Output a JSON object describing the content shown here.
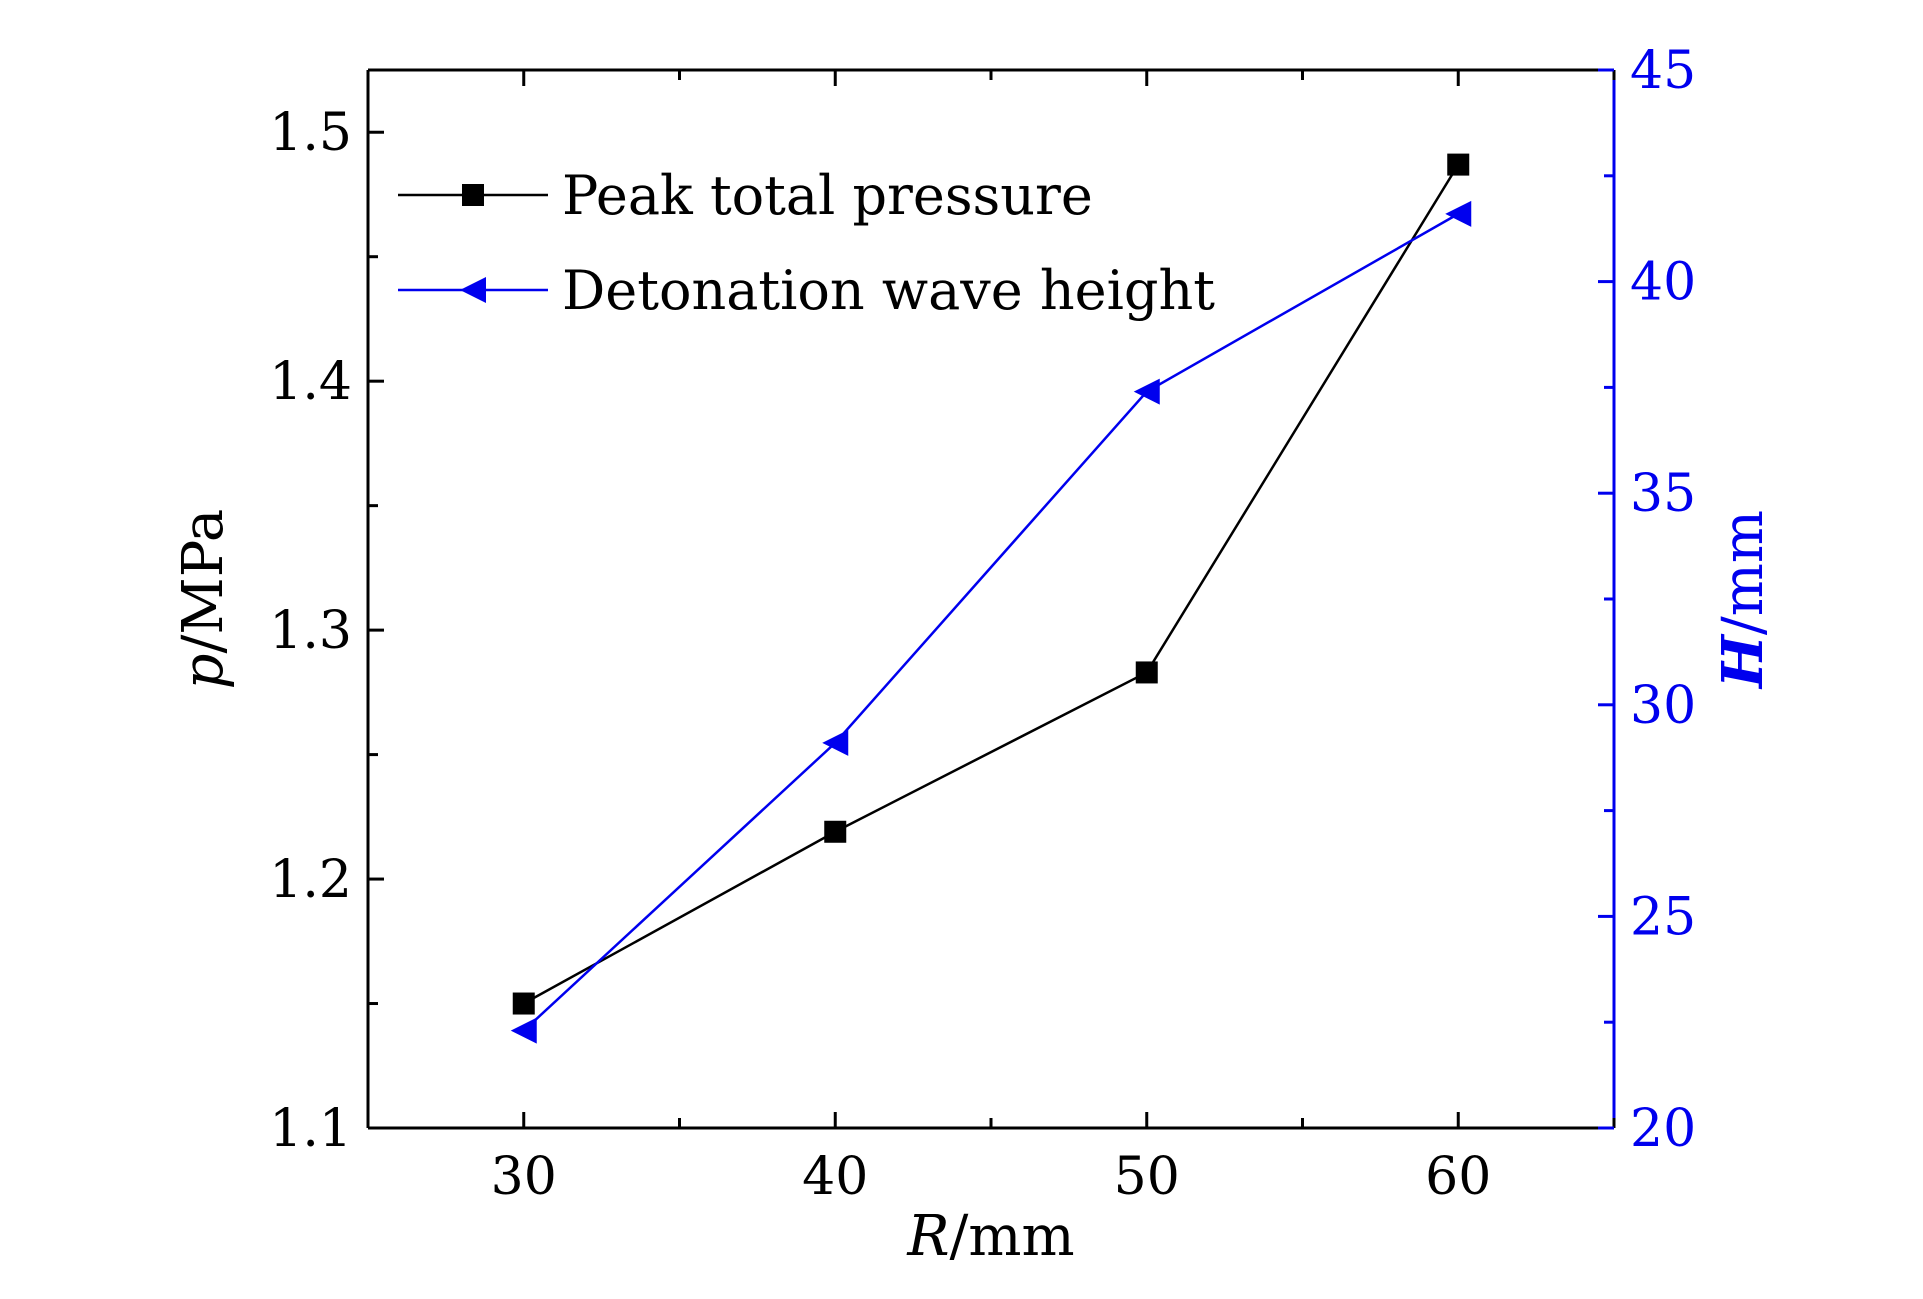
{
  "chart_data": {
    "type": "line",
    "x": [
      30,
      40,
      50,
      60
    ],
    "x_ticks": [
      "30",
      "40",
      "50",
      "60"
    ],
    "xlim": [
      25,
      65
    ],
    "xlabel": {
      "symbol": "R",
      "unit": "/mm"
    },
    "left_axis": {
      "ylabel": {
        "symbol": "p",
        "unit": "/MPa"
      },
      "ylim": [
        1.1,
        1.525
      ],
      "ticks": [
        "1.1",
        "1.2",
        "1.3",
        "1.4",
        "1.5"
      ],
      "tick_values": [
        1.1,
        1.2,
        1.3,
        1.4,
        1.5
      ]
    },
    "right_axis": {
      "ylabel": {
        "symbol": "H",
        "unit": "/mm"
      },
      "ylim": [
        20,
        45
      ],
      "ticks": [
        "20",
        "25",
        "30",
        "35",
        "40",
        "45"
      ],
      "tick_values": [
        20,
        25,
        30,
        35,
        40,
        45
      ],
      "color": "#0000ee"
    },
    "series": [
      {
        "name": "Peak total pressure",
        "axis": "left",
        "marker": "square",
        "color": "#000000",
        "values": [
          1.15,
          1.219,
          1.283,
          1.487
        ]
      },
      {
        "name": "Detonation wave height",
        "axis": "right",
        "marker": "triangle-left",
        "color": "#0000ee",
        "values": [
          22.3,
          29.1,
          37.4,
          41.6
        ]
      }
    ],
    "legend": {
      "position": "top-left"
    },
    "grid": false
  }
}
